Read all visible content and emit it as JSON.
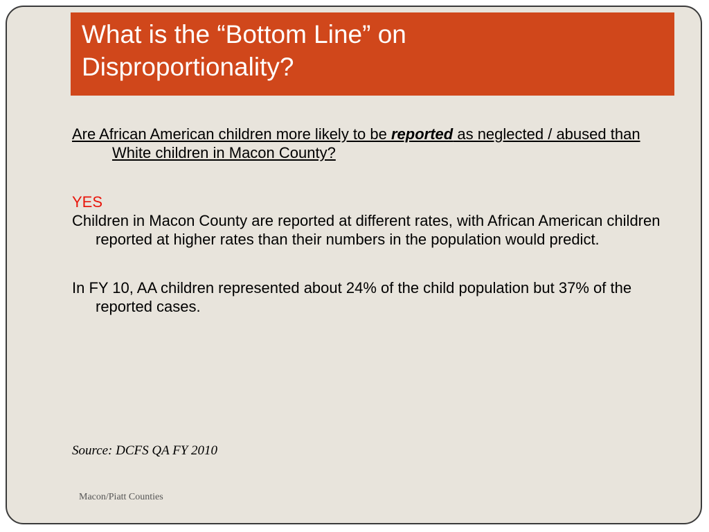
{
  "slide": {
    "title_line1": "What is the “Bottom Line” on",
    "title_line2": "Disproportionality?",
    "question_pre": "Are African American children more likely to be ",
    "question_emph": "reported",
    "question_post": " as neglected / abused than White children in Macon County?",
    "answer": "YES",
    "paragraph1": "Children in Macon County are reported at different rates, with African American children reported at higher rates than their numbers in the population would predict.",
    "paragraph2": "In FY 10, AA children represented about 24% of the child population but 37% of the reported cases.",
    "source": "Source: DCFS QA FY 2010",
    "footer": "Macon/Piatt Counties"
  },
  "colors": {
    "title_bar": "#d0471b",
    "background": "#e8e4dc",
    "answer": "#e8160c"
  }
}
